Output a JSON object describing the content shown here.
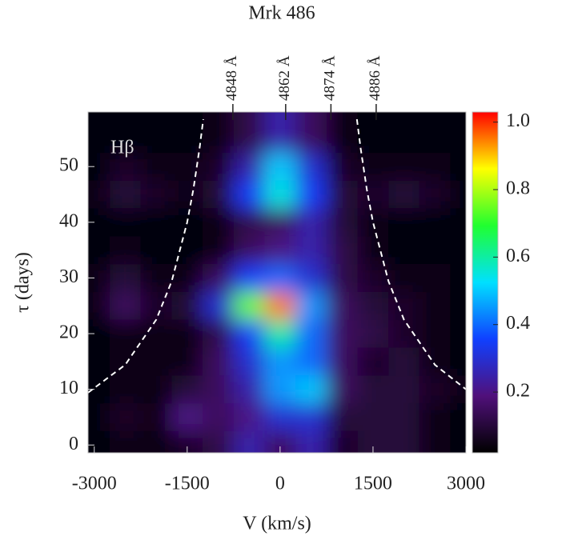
{
  "chart_data": {
    "type": "heatmap",
    "title": "Mrk 486",
    "xlabel": "V (km/s)",
    "ylabel": "τ (days)",
    "annotation": "Hβ",
    "x": [
      -3000,
      -2500,
      -2000,
      -1500,
      -1000,
      -500,
      0,
      500,
      1000,
      1500,
      2000,
      2500,
      3000
    ],
    "y": [
      0,
      5,
      10,
      15,
      20,
      25,
      30,
      35,
      40,
      45,
      50,
      55
    ],
    "z": [
      [
        0.03,
        0.05,
        0.05,
        0.08,
        0.12,
        0.25,
        0.15,
        0.25,
        0.08,
        0.1,
        0.1,
        0.05,
        0.03
      ],
      [
        0.03,
        0.08,
        0.05,
        0.2,
        0.15,
        0.2,
        0.3,
        0.3,
        0.1,
        0.1,
        0.1,
        0.05,
        0.03
      ],
      [
        0.03,
        0.05,
        0.05,
        0.1,
        0.15,
        0.25,
        0.45,
        0.5,
        0.15,
        0.1,
        0.1,
        0.08,
        0.05
      ],
      [
        0.03,
        0.05,
        0.05,
        0.05,
        0.15,
        0.3,
        0.45,
        0.4,
        0.15,
        0.08,
        0.1,
        0.05,
        0.03
      ],
      [
        0.03,
        0.05,
        0.05,
        0.05,
        0.12,
        0.35,
        0.6,
        0.4,
        0.15,
        0.12,
        0.08,
        0.05,
        0.03
      ],
      [
        0.05,
        0.15,
        0.08,
        0.1,
        0.3,
        0.75,
        0.95,
        0.45,
        0.15,
        0.1,
        0.08,
        0.05,
        0.03
      ],
      [
        0.05,
        0.1,
        0.05,
        0.05,
        0.15,
        0.35,
        0.4,
        0.3,
        0.12,
        0.08,
        0.05,
        0.05,
        0.03
      ],
      [
        0.03,
        0.05,
        0.03,
        0.03,
        0.05,
        0.15,
        0.2,
        0.25,
        0.12,
        0.05,
        0.03,
        0.03,
        0.03
      ],
      [
        0.03,
        0.03,
        0.03,
        0.03,
        0.05,
        0.12,
        0.15,
        0.25,
        0.1,
        0.05,
        0.03,
        0.03,
        0.03
      ],
      [
        0.05,
        0.1,
        0.08,
        0.05,
        0.1,
        0.35,
        0.55,
        0.35,
        0.1,
        0.08,
        0.1,
        0.08,
        0.03
      ],
      [
        0.03,
        0.08,
        0.05,
        0.05,
        0.08,
        0.25,
        0.5,
        0.3,
        0.08,
        0.05,
        0.05,
        0.05,
        0.03
      ],
      [
        0.03,
        0.03,
        0.03,
        0.03,
        0.05,
        0.12,
        0.25,
        0.15,
        0.05,
        0.03,
        0.03,
        0.03,
        0.03
      ]
    ],
    "xlim": [
      -3100,
      3000
    ],
    "xticks": [
      -3000,
      -1500,
      0,
      1500,
      3000
    ],
    "ylim": [
      -1.4,
      59.8
    ],
    "yticks": [
      0,
      10,
      20,
      30,
      40,
      50
    ],
    "x2lim": [
      4809.6,
      4909.8
    ],
    "x2ticks": [
      {
        "value": 4848,
        "label": "4848 Å"
      },
      {
        "value": 4862,
        "label": "4862 Å"
      },
      {
        "value": 4874,
        "label": "4874 Å"
      },
      {
        "value": 4886,
        "label": "4886 Å"
      }
    ],
    "clim": [
      0.02,
      1.03
    ],
    "cticks": [
      0.2,
      0.4,
      0.6,
      0.8,
      {
        "value": 1,
        "label": "1.0"
      }
    ],
    "colormap": [
      "#000000",
      "#50107a",
      "#1040ff",
      "#00e0ff",
      "#20ff30",
      "#ffff00",
      "#ff0000"
    ],
    "envelope": {
      "color": "#ffffff",
      "x": [
        -3100,
        -2500,
        -2000,
        -1750,
        -1500,
        -1400,
        -1300,
        -1240,
        null,
        1240,
        1300,
        1400,
        1500,
        1750,
        2000,
        2500,
        3000
      ],
      "values": [
        9.4,
        14.4,
        22.5,
        29.4,
        40,
        45.9,
        53.3,
        58.5,
        null,
        58.5,
        53.3,
        45.9,
        40,
        29.4,
        22.5,
        14.4,
        10
      ]
    }
  }
}
